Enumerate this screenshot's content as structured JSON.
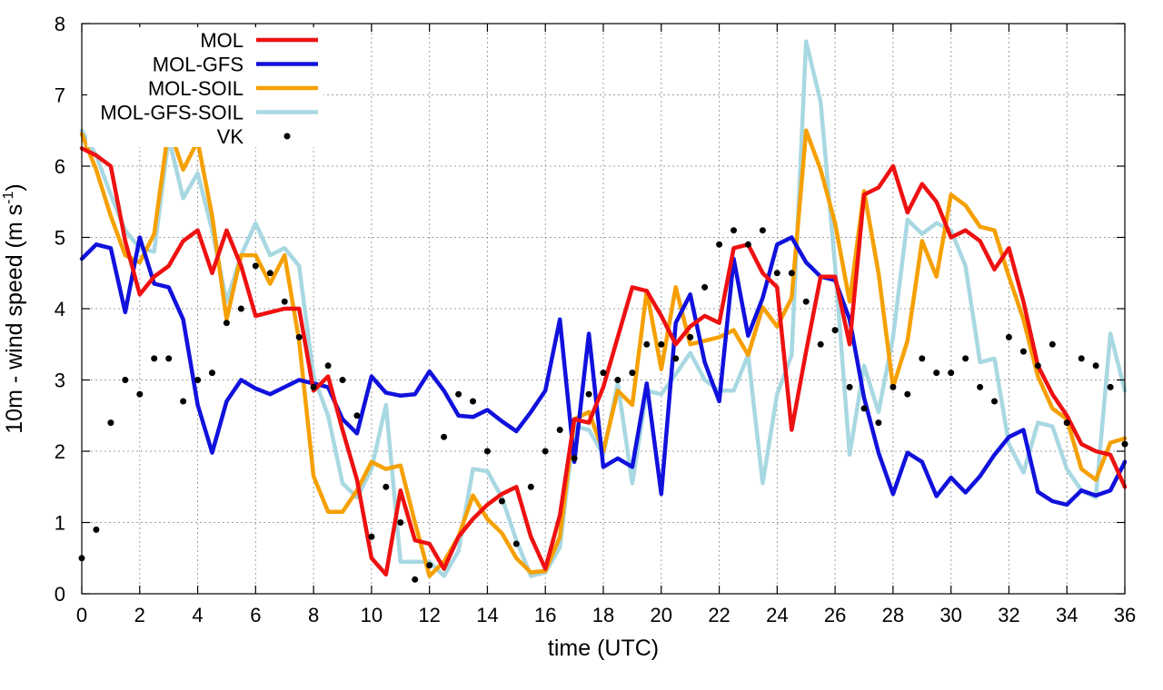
{
  "chart_data": {
    "type": "line",
    "xlabel": "time (UTC)",
    "ylabel_main": "10m - wind speed  (m s",
    "ylabel_sup": "-1",
    "ylabel_end": ")",
    "xlim": [
      0,
      36
    ],
    "ylim": [
      0,
      8
    ],
    "xticks": [
      0,
      2,
      4,
      6,
      8,
      10,
      12,
      14,
      16,
      18,
      20,
      22,
      24,
      26,
      28,
      30,
      32,
      34,
      36
    ],
    "yticks": [
      0,
      1,
      2,
      3,
      4,
      5,
      6,
      7,
      8
    ],
    "grid": true,
    "legend_position": "top-left",
    "series": [
      {
        "name": "MOL",
        "color": "#ee1111",
        "style": "line",
        "x": [
          0,
          0.5,
          1,
          1.5,
          2,
          2.5,
          3,
          3.5,
          4,
          4.5,
          5,
          5.5,
          6,
          6.5,
          7,
          7.5,
          8,
          8.5,
          9,
          9.5,
          10,
          10.5,
          11,
          11.5,
          12,
          12.5,
          13,
          13.5,
          14,
          14.5,
          15,
          15.5,
          16,
          16.5,
          17,
          17.5,
          18,
          18.5,
          19,
          19.5,
          20,
          20.5,
          21,
          21.5,
          22,
          22.5,
          23,
          23.5,
          24,
          24.5,
          25,
          25.5,
          26,
          26.5,
          27,
          27.5,
          28,
          28.5,
          29,
          29.5,
          30,
          30.5,
          31,
          31.5,
          32,
          32.5,
          33,
          33.5,
          34,
          34.5,
          35,
          35.5,
          36
        ],
        "values": [
          6.25,
          6.15,
          6.0,
          4.95,
          4.2,
          4.45,
          4.6,
          4.95,
          5.1,
          4.5,
          5.1,
          4.6,
          3.9,
          3.95,
          4.0,
          4.0,
          2.85,
          3.05,
          2.3,
          1.6,
          0.5,
          0.27,
          1.45,
          0.75,
          0.7,
          0.35,
          0.8,
          1.05,
          1.25,
          1.4,
          1.5,
          0.8,
          0.35,
          1.1,
          2.45,
          2.4,
          2.9,
          3.6,
          4.3,
          4.25,
          3.9,
          3.5,
          3.75,
          3.9,
          3.8,
          4.85,
          4.9,
          4.5,
          4.3,
          2.3,
          3.4,
          4.45,
          4.45,
          3.5,
          5.6,
          5.7,
          6.0,
          5.35,
          5.75,
          5.5,
          5.0,
          5.1,
          4.95,
          4.55,
          4.85,
          4.1,
          3.2,
          2.8,
          2.5,
          2.1,
          2.0,
          1.95,
          1.5
        ]
      },
      {
        "name": "MOL-GFS",
        "color": "#1111dd",
        "style": "line",
        "x": [
          0,
          0.5,
          1,
          1.5,
          2,
          2.5,
          3,
          3.5,
          4,
          4.5,
          5,
          5.5,
          6,
          6.5,
          7,
          7.5,
          8,
          8.5,
          9,
          9.5,
          10,
          10.5,
          11,
          11.5,
          12,
          12.5,
          13,
          13.5,
          14,
          14.5,
          15,
          15.5,
          16,
          16.5,
          17,
          17.5,
          18,
          18.5,
          19,
          19.5,
          20,
          20.5,
          21,
          21.5,
          22,
          22.5,
          23,
          23.5,
          24,
          24.5,
          25,
          25.5,
          26,
          26.5,
          27,
          27.5,
          28,
          28.5,
          29,
          29.5,
          30,
          30.5,
          31,
          31.5,
          32,
          32.5,
          33,
          33.5,
          34,
          34.5,
          35,
          35.5,
          36
        ],
        "values": [
          4.7,
          4.9,
          4.85,
          3.95,
          5.0,
          4.35,
          4.3,
          3.85,
          2.65,
          1.98,
          2.7,
          3.0,
          2.88,
          2.8,
          2.9,
          3.0,
          2.95,
          2.9,
          2.45,
          2.25,
          3.05,
          2.82,
          2.78,
          2.8,
          3.12,
          2.85,
          2.5,
          2.48,
          2.58,
          2.42,
          2.28,
          2.55,
          2.85,
          3.85,
          1.85,
          3.65,
          1.78,
          1.9,
          1.78,
          2.95,
          1.4,
          3.8,
          4.2,
          3.25,
          2.7,
          4.7,
          3.62,
          4.15,
          4.9,
          5.0,
          4.65,
          4.45,
          4.4,
          3.85,
          2.75,
          1.98,
          1.4,
          1.98,
          1.85,
          1.37,
          1.63,
          1.42,
          1.65,
          1.95,
          2.2,
          2.3,
          1.43,
          1.3,
          1.25,
          1.45,
          1.38,
          1.45,
          1.85
        ]
      },
      {
        "name": "MOL-SOIL",
        "color": "#f5a000",
        "style": "line",
        "x": [
          0,
          0.5,
          1,
          1.5,
          2,
          2.5,
          3,
          3.5,
          4,
          4.5,
          5,
          5.5,
          6,
          6.5,
          7,
          7.5,
          8,
          8.5,
          9,
          9.5,
          10,
          10.5,
          11,
          11.5,
          12,
          12.5,
          13,
          13.5,
          14,
          14.5,
          15,
          15.5,
          16,
          16.5,
          17,
          17.5,
          18,
          18.5,
          19,
          19.5,
          20,
          20.5,
          21,
          21.5,
          22,
          22.5,
          23,
          23.5,
          24,
          24.5,
          25,
          25.5,
          26,
          26.5,
          27,
          27.5,
          28,
          28.5,
          29,
          29.5,
          30,
          30.5,
          31,
          31.5,
          32,
          32.5,
          33,
          33.5,
          34,
          34.5,
          35,
          35.5,
          36
        ],
        "values": [
          6.45,
          5.95,
          5.3,
          4.75,
          4.65,
          5.05,
          6.55,
          5.95,
          6.35,
          5.3,
          3.85,
          4.75,
          4.75,
          4.35,
          4.75,
          3.55,
          1.65,
          1.15,
          1.15,
          1.45,
          1.85,
          1.75,
          1.8,
          1.0,
          0.25,
          0.45,
          0.8,
          1.38,
          1.05,
          0.85,
          0.5,
          0.3,
          0.32,
          0.8,
          2.45,
          2.55,
          2.0,
          2.85,
          2.65,
          4.25,
          3.15,
          4.3,
          3.5,
          3.55,
          3.6,
          3.7,
          3.35,
          4.02,
          3.75,
          4.15,
          6.5,
          5.95,
          5.2,
          4.1,
          5.65,
          4.5,
          2.9,
          3.55,
          4.95,
          4.45,
          5.6,
          5.45,
          5.15,
          5.1,
          4.45,
          3.85,
          3.05,
          2.6,
          2.45,
          1.75,
          1.6,
          2.12,
          2.18
        ]
      },
      {
        "name": "MOL-GFS-SOIL",
        "color": "#a8d8e2",
        "style": "line",
        "x": [
          0,
          0.5,
          1,
          1.5,
          2,
          2.5,
          3,
          3.5,
          4,
          4.5,
          5,
          5.5,
          6,
          6.5,
          7,
          7.5,
          8,
          8.5,
          9,
          9.5,
          10,
          10.5,
          11,
          11.5,
          12,
          12.5,
          13,
          13.5,
          14,
          14.5,
          15,
          15.5,
          16,
          16.5,
          17,
          17.5,
          18,
          18.5,
          19,
          19.5,
          20,
          20.5,
          21,
          21.5,
          22,
          22.5,
          23,
          23.5,
          24,
          24.5,
          25,
          25.5,
          26,
          26.5,
          27,
          27.5,
          28,
          28.5,
          29,
          29.5,
          30,
          30.5,
          31,
          31.5,
          32,
          32.5,
          33,
          33.5,
          34,
          34.5,
          35,
          35.5,
          36
        ],
        "values": [
          6.5,
          6.15,
          5.6,
          5.1,
          4.85,
          4.8,
          6.4,
          5.55,
          5.9,
          5.1,
          4.1,
          4.75,
          5.2,
          4.75,
          4.85,
          4.6,
          3.05,
          2.5,
          1.55,
          1.35,
          1.75,
          2.65,
          0.45,
          0.45,
          0.45,
          0.25,
          0.6,
          1.75,
          1.72,
          1.35,
          0.75,
          0.25,
          0.3,
          0.65,
          2.35,
          2.3,
          1.95,
          2.95,
          1.55,
          2.85,
          2.8,
          3.08,
          3.38,
          3.0,
          2.85,
          2.85,
          3.35,
          1.55,
          2.8,
          3.35,
          7.75,
          6.9,
          4.6,
          1.95,
          3.2,
          2.55,
          3.6,
          5.25,
          5.05,
          5.2,
          5.1,
          4.6,
          3.25,
          3.3,
          2.1,
          1.7,
          2.4,
          2.35,
          1.75,
          1.45,
          1.35,
          3.65,
          2.85
        ]
      },
      {
        "name": "VK",
        "color": "#000000",
        "style": "points",
        "x": [
          0,
          0.5,
          1,
          1.5,
          2,
          2.5,
          3,
          3.5,
          4,
          4.5,
          5,
          5.5,
          6,
          6.5,
          7,
          7.5,
          8,
          8.5,
          9,
          9.5,
          10,
          10.5,
          11,
          11.5,
          12,
          12.5,
          13,
          13.5,
          14,
          14.5,
          15,
          15.5,
          16,
          16.5,
          17,
          17.5,
          18,
          18.5,
          19,
          19.5,
          20,
          20.5,
          21,
          21.5,
          22,
          22.5,
          23,
          23.5,
          24,
          24.5,
          25,
          25.5,
          26,
          26.5,
          27,
          27.5,
          28,
          28.5,
          29,
          29.5,
          30,
          30.5,
          31,
          31.5,
          32,
          32.5,
          33,
          33.5,
          34,
          34.5,
          35,
          35.5,
          36
        ],
        "values": [
          0.5,
          0.9,
          2.4,
          3.0,
          2.8,
          3.3,
          3.3,
          2.7,
          3.0,
          3.1,
          3.8,
          4.0,
          4.6,
          4.5,
          4.1,
          3.6,
          2.9,
          3.2,
          3.0,
          2.5,
          0.8,
          1.5,
          1.0,
          0.2,
          0.4,
          2.2,
          2.8,
          2.7,
          2.0,
          1.3,
          0.7,
          1.5,
          2.0,
          2.3,
          1.9,
          2.8,
          3.1,
          3.0,
          3.1,
          3.5,
          3.5,
          3.3,
          3.6,
          4.3,
          4.9,
          5.1,
          4.9,
          5.1,
          4.5,
          4.5,
          4.1,
          3.5,
          3.7,
          2.9,
          2.6,
          2.4,
          2.9,
          2.8,
          3.3,
          3.1,
          3.1,
          3.3,
          2.9,
          2.7,
          3.6,
          3.4,
          3.2,
          3.5,
          2.4,
          3.3,
          3.2,
          2.9,
          2.1
        ]
      }
    ]
  }
}
